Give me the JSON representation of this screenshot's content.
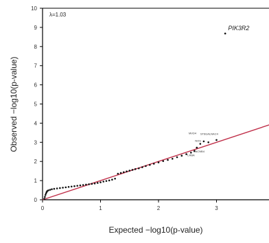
{
  "chart_data": {
    "type": "scatter",
    "title": "",
    "xlabel": "Expected −log10(p-value)",
    "ylabel": "Observed −log10(p-value)",
    "xlim": [
      0,
      4
    ],
    "ylim": [
      0,
      10
    ],
    "x_ticks": [
      "0",
      "1",
      "2",
      "3"
    ],
    "y_ticks": [
      "0",
      "1",
      "2",
      "3",
      "4",
      "5",
      "6",
      "7",
      "8",
      "9",
      "10"
    ],
    "lambda_label": "λ=1.03",
    "reference_line": {
      "slope": 1,
      "intercept": 0,
      "color": "#c0304a"
    },
    "point_color": "#111111",
    "grid": false,
    "legend": "none",
    "series": [
      {
        "points": [
          [
            0.03,
            0.05
          ],
          [
            0.04,
            0.15
          ],
          [
            0.05,
            0.25
          ],
          [
            0.06,
            0.33
          ],
          [
            0.07,
            0.4
          ],
          [
            0.08,
            0.45
          ],
          [
            0.1,
            0.49
          ],
          [
            0.13,
            0.52
          ],
          [
            0.16,
            0.55
          ],
          [
            0.2,
            0.57
          ],
          [
            0.25,
            0.59
          ],
          [
            0.3,
            0.61
          ],
          [
            0.35,
            0.63
          ],
          [
            0.4,
            0.65
          ],
          [
            0.45,
            0.67
          ],
          [
            0.5,
            0.69
          ],
          [
            0.55,
            0.71
          ],
          [
            0.6,
            0.73
          ],
          [
            0.65,
            0.75
          ],
          [
            0.7,
            0.77
          ],
          [
            0.75,
            0.79
          ],
          [
            0.8,
            0.81
          ],
          [
            0.85,
            0.83
          ],
          [
            0.9,
            0.85
          ],
          [
            0.95,
            0.88
          ],
          [
            1.0,
            0.91
          ],
          [
            1.05,
            0.95
          ],
          [
            1.1,
            0.98
          ],
          [
            1.15,
            1.01
          ],
          [
            1.2,
            1.05
          ],
          [
            1.25,
            1.1
          ],
          [
            1.3,
            1.36
          ],
          [
            1.35,
            1.4
          ],
          [
            1.4,
            1.44
          ],
          [
            1.45,
            1.48
          ],
          [
            1.5,
            1.52
          ],
          [
            1.55,
            1.56
          ],
          [
            1.6,
            1.6
          ],
          [
            1.66,
            1.64
          ],
          [
            1.72,
            1.7
          ],
          [
            1.78,
            1.76
          ],
          [
            1.85,
            1.82
          ],
          [
            1.92,
            1.88
          ],
          [
            2.0,
            1.95
          ],
          [
            2.08,
            2.02
          ],
          [
            2.16,
            2.08
          ],
          [
            2.24,
            2.14
          ],
          [
            2.32,
            2.22
          ],
          [
            2.4,
            2.3
          ],
          [
            2.48,
            2.38
          ],
          [
            2.56,
            2.46
          ],
          [
            2.62,
            2.55
          ],
          [
            2.66,
            2.72
          ],
          [
            2.72,
            2.92
          ],
          [
            2.78,
            3.05
          ],
          [
            2.86,
            3.0
          ],
          [
            3.0,
            3.12
          ],
          [
            3.15,
            8.68
          ]
        ]
      }
    ],
    "annotations": [
      {
        "text": "PIK3R2",
        "x": 3.2,
        "y": 8.85
      },
      {
        "text": "ST6GALNAC4",
        "x": 2.72,
        "y": 3.38
      },
      {
        "text": "MVD4",
        "x": 2.52,
        "y": 3.42
      },
      {
        "text": "NOS",
        "x": 2.63,
        "y": 3.02
      },
      {
        "text": "CACNB4",
        "x": 2.6,
        "y": 2.48
      },
      {
        "text": "LRBA",
        "x": 2.5,
        "y": 2.28
      }
    ]
  }
}
